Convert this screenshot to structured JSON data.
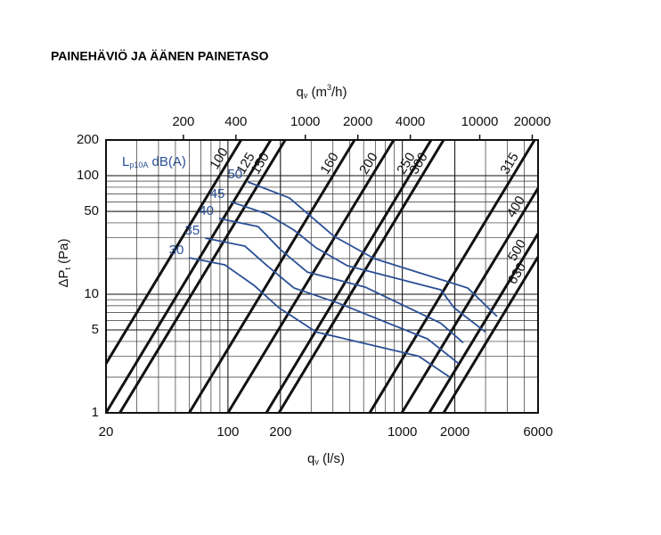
{
  "chart_data": {
    "type": "line",
    "title": "PAINEHÄVIÖ JA ÄÄNEN PAINETASO",
    "x_label": {
      "main": "q",
      "sub": "v",
      "rest": " (l/s)"
    },
    "x2_label": {
      "main": "q",
      "sub": "v",
      "rest": " (m",
      "sup": "3",
      "end": "/h)"
    },
    "y_label": {
      "main": "ΔP",
      "sub": "t",
      "rest": " (Pa)"
    },
    "legend_title": {
      "main": "L",
      "sub": "p10A",
      "rest": " dB(A)"
    },
    "log_x": true,
    "log_y": true,
    "grid": true,
    "xlim": [
      20,
      6000
    ],
    "xticks": [
      20,
      100,
      200,
      1000,
      2000,
      6000
    ],
    "x2lim": [
      72,
      21600
    ],
    "x2ticks": [
      200,
      400,
      1000,
      2000,
      4000,
      10000,
      20000
    ],
    "ylim": [
      1,
      200
    ],
    "yticks": [
      1,
      5,
      10,
      50,
      100,
      200
    ],
    "series": [
      {
        "name": "100",
        "color": "#111111",
        "x": [
          20,
          119
        ],
        "values": [
          2.6,
          200
        ]
      },
      {
        "name": "125",
        "color": "#111111",
        "x": [
          20,
          176
        ],
        "values": [
          1,
          200
        ]
      },
      {
        "name": "150",
        "color": "#111111",
        "x": [
          24,
          213
        ],
        "values": [
          1,
          200
        ]
      },
      {
        "name": "160",
        "color": "#111111",
        "x": [
          60,
          532
        ],
        "values": [
          1,
          200
        ]
      },
      {
        "name": "200",
        "color": "#111111",
        "x": [
          100,
          893
        ],
        "values": [
          1,
          200
        ]
      },
      {
        "name": "250",
        "color": "#111111",
        "x": [
          166,
          1462
        ],
        "values": [
          1,
          200
        ]
      },
      {
        "name": "300",
        "color": "#111111",
        "x": [
          196,
          1724
        ],
        "values": [
          1,
          200
        ]
      },
      {
        "name": "315",
        "color": "#111111",
        "x": [
          650,
          5728
        ],
        "values": [
          1,
          200
        ]
      },
      {
        "name": "400",
        "color": "#111111",
        "x": [
          993,
          6000
        ],
        "values": [
          1,
          78.5
        ]
      },
      {
        "name": "500",
        "color": "#111111",
        "x": [
          1428,
          6000
        ],
        "values": [
          1,
          32.5
        ]
      },
      {
        "name": "630",
        "color": "#111111",
        "x": [
          1725,
          6000
        ],
        "values": [
          1,
          20.7
        ]
      },
      {
        "name": "50",
        "color": "#2a4f96",
        "x": [
          130,
          225,
          406,
          690,
          2370,
          3490
        ],
        "values": [
          88.6,
          65,
          30.8,
          20,
          11.3,
          6.5
        ]
      },
      {
        "name": "45",
        "color": "#2a4f96",
        "x": [
          103,
          168,
          239,
          321,
          484,
          1660,
          1980,
          3000
        ],
        "values": [
          60.5,
          47.5,
          34.8,
          24.6,
          17.4,
          10.9,
          7.7,
          4.8
        ]
      },
      {
        "name": "40",
        "color": "#2a4f96",
        "x": [
          89,
          149,
          200,
          285,
          612,
          1660,
          2234
        ],
        "values": [
          43.6,
          37.2,
          23.8,
          15.4,
          11.5,
          5.7,
          3.9
        ]
      },
      {
        "name": "35",
        "color": "#2a4f96",
        "x": [
          74,
          125,
          168,
          239,
          431,
          1396,
          2104
        ],
        "values": [
          29.8,
          25.5,
          17.4,
          11.3,
          8.4,
          4.2,
          2.6
        ]
      },
      {
        "name": "30",
        "color": "#2a4f96",
        "x": [
          60,
          96,
          141,
          196,
          321,
          871,
          1241,
          1872
        ],
        "values": [
          20.3,
          17.7,
          11.9,
          7.7,
          4.8,
          3.4,
          3.0,
          2.0
        ]
      }
    ]
  }
}
